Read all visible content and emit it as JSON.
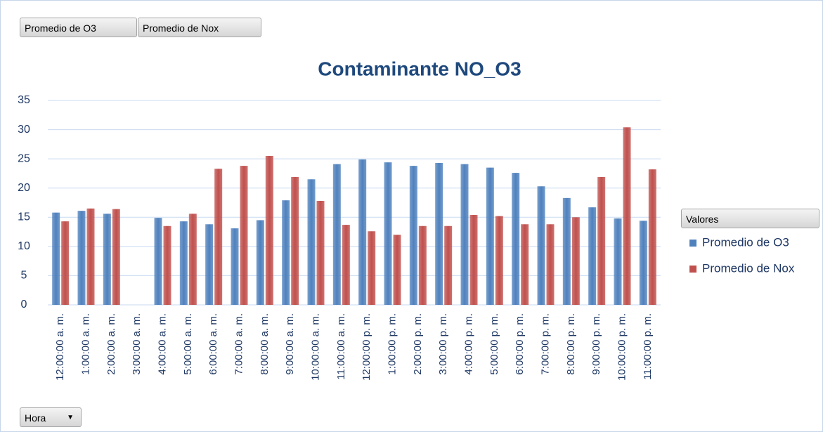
{
  "chart_data": {
    "type": "bar",
    "title": "Contaminante NO_O3",
    "filter_buttons": [
      "Promedio de O3",
      "Promedio de Nox"
    ],
    "axis_button": "Hora",
    "legend_title": "Valores",
    "categories": [
      "12:00:00 a. m.",
      "1:00:00 a. m.",
      "2:00:00 a. m.",
      "3:00:00 a. m.",
      "4:00:00 a. m.",
      "5:00:00 a. m.",
      "6:00:00 a. m.",
      "7:00:00 a. m.",
      "8:00:00 a. m.",
      "9:00:00 a. m.",
      "10:00:00 a. m.",
      "11:00:00 a. m.",
      "12:00:00 p. m.",
      "1:00:00 p. m.",
      "2:00:00 p. m.",
      "3:00:00 p. m.",
      "4:00:00 p. m.",
      "5:00:00 p. m.",
      "6:00:00 p. m.",
      "7:00:00 p. m.",
      "8:00:00 p. m.",
      "9:00:00 p. m.",
      "10:00:00 p. m.",
      "11:00:00 p. m."
    ],
    "series": [
      {
        "name": "Promedio de O3",
        "color": "#4f81bd",
        "values": [
          15.8,
          16.1,
          15.6,
          null,
          14.9,
          14.3,
          13.8,
          13.1,
          14.5,
          17.9,
          21.5,
          24.1,
          24.9,
          24.4,
          23.8,
          24.3,
          24.1,
          23.5,
          22.6,
          20.3,
          18.3,
          16.7,
          14.8,
          14.4
        ]
      },
      {
        "name": "Promedio de Nox",
        "color": "#c0504d",
        "values": [
          14.3,
          16.5,
          16.4,
          null,
          13.5,
          15.6,
          23.3,
          23.8,
          25.5,
          21.9,
          17.8,
          13.7,
          12.6,
          12.0,
          13.5,
          13.5,
          15.4,
          15.2,
          13.8,
          13.8,
          15.0,
          21.9,
          30.4,
          23.2
        ]
      }
    ],
    "ylim": [
      0,
      35
    ],
    "yticks": [
      0,
      5,
      10,
      15,
      20,
      25,
      30,
      35
    ],
    "grid": true,
    "legend": "right"
  }
}
